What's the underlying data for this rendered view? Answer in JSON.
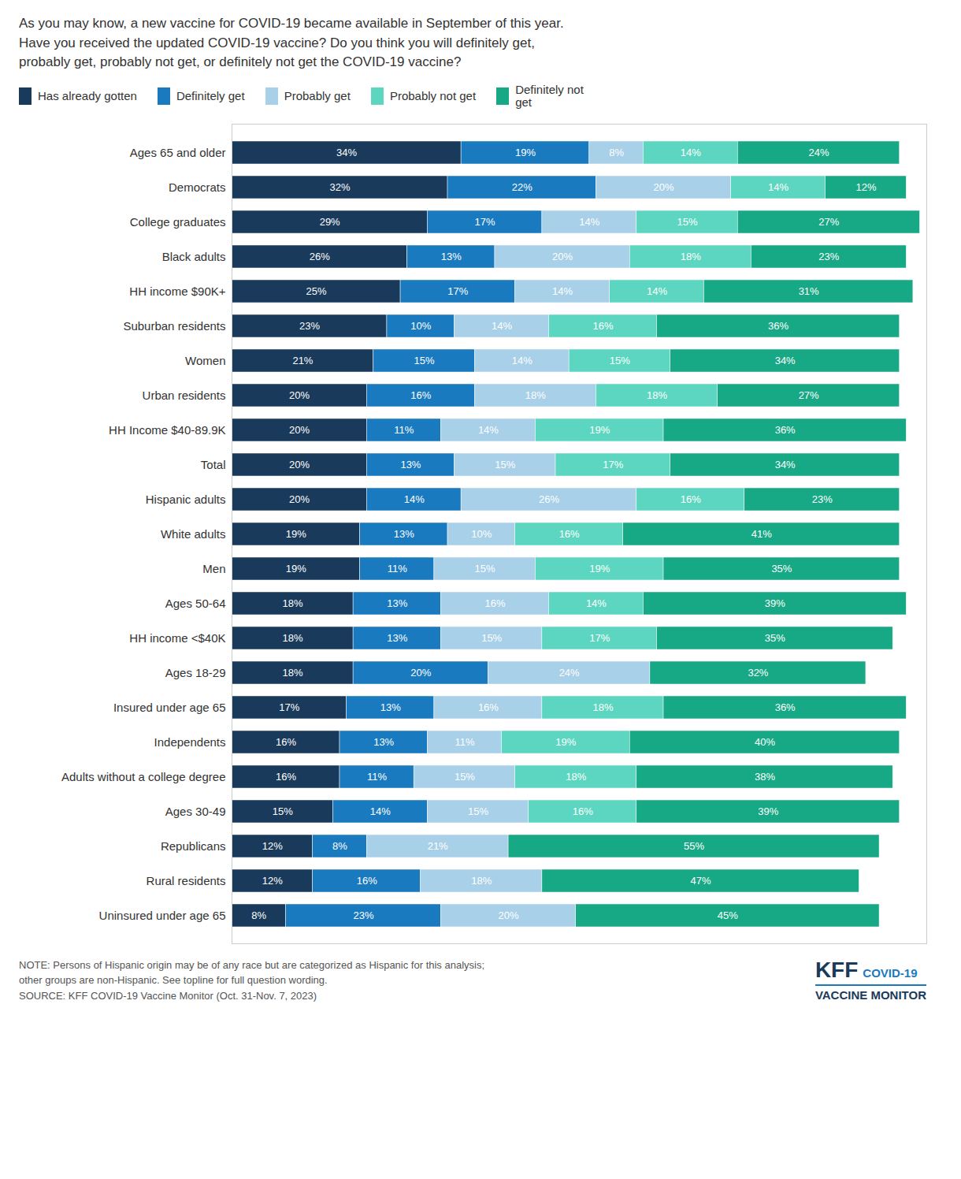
{
  "chart_data": {
    "type": "bar",
    "orientation": "horizontal",
    "stacked": true,
    "data_labels": true,
    "tick_labels": "y",
    "grid": false,
    "legend": "top",
    "title": "As you may know, a new vaccine for COVID-19 became available in September of this year.\nHave you received the updated COVID-19 vaccine? Do you think you will definitely get,\nprobably get, probably not get, or definitely not get the COVID-19 vaccine?",
    "caption": "NOTE: Persons of Hispanic origin may be of any race but are categorized as Hispanic for this analysis;\nother groups are non-Hispanic. See topline for full question wording.\nSOURCE: KFF COVID-19 Vaccine Monitor (Oct. 31-Nov. 7, 2023)",
    "annotations": [
      "KFF",
      "COVID-19",
      "VACCINE MONITOR"
    ],
    "categories": [
      "Ages 65 and older",
      "Democrats",
      "College graduates",
      "Black adults",
      "HH income $90K+",
      "Suburban residents",
      "Women",
      "Urban residents",
      "HH Income $40-89.9K",
      "Total",
      "Hispanic adults",
      "White adults",
      "Men",
      "Ages 50-64",
      "HH income <$40K",
      "Ages 18-29",
      "Insured under age 65",
      "Independents",
      "Adults without a college degree",
      "Ages 30-49",
      "Republicans",
      "Rural residents",
      "Uninsured under age 65"
    ],
    "xlim": [
      0,
      103
    ],
    "xticks": [],
    "series": [
      {
        "name": "Has already gotten",
        "color": "#1a3a5c",
        "values": [
          34,
          32,
          29,
          26,
          25,
          23,
          21,
          20,
          20,
          20,
          20,
          19,
          19,
          18,
          18,
          18,
          17,
          16,
          16,
          15,
          12,
          12,
          8
        ],
        "value_labels": [
          "34%",
          "32%",
          "29%",
          "26%",
          "25%",
          "23%",
          "21%",
          "20%",
          "20%",
          "20%",
          "20%",
          "19%",
          "19%",
          "18%",
          "18%",
          "18%",
          "17%",
          "16%",
          "16%",
          "15%",
          "12%",
          "12%",
          "8%"
        ]
      },
      {
        "name": "Definitely get",
        "color": "#1a7abf",
        "values": [
          19,
          22,
          17,
          13,
          17,
          10,
          15,
          16,
          11,
          13,
          14,
          13,
          11,
          13,
          13,
          20,
          13,
          13,
          11,
          14,
          8,
          16,
          23
        ],
        "value_labels": [
          "19%",
          "22%",
          "17%",
          "13%",
          "17%",
          "10%",
          "15%",
          "16%",
          "11%",
          "13%",
          "14%",
          "13%",
          "11%",
          "13%",
          "13%",
          "20%",
          "13%",
          "13%",
          "11%",
          "14%",
          "8%",
          "16%",
          "23%"
        ]
      },
      {
        "name": "Probably get",
        "color": "#a8d0e8",
        "values": [
          8,
          20,
          14,
          20,
          14,
          14,
          14,
          18,
          14,
          15,
          26,
          10,
          15,
          16,
          15,
          24,
          16,
          11,
          15,
          15,
          21,
          18,
          20
        ],
        "value_labels": [
          "8%",
          "20%",
          "14%",
          "20%",
          "14%",
          "14%",
          "14%",
          "18%",
          "14%",
          "15%",
          "26%",
          "10%",
          "15%",
          "16%",
          "15%",
          "24%",
          "16%",
          "11%",
          "15%",
          "15%",
          "21%",
          "18%",
          "20%"
        ]
      },
      {
        "name": "Probably not get",
        "color": "#5cd6c0",
        "values": [
          14,
          14,
          15,
          18,
          14,
          16,
          15,
          18,
          19,
          17,
          16,
          16,
          19,
          14,
          17,
          0,
          18,
          19,
          18,
          16,
          0,
          0,
          0
        ],
        "value_labels": [
          "14%",
          "14%",
          "15%",
          "18%",
          "14%",
          "16%",
          "15%",
          "18%",
          "19%",
          "17%",
          "16%",
          "16%",
          "19%",
          "14%",
          "17%",
          null,
          "18%",
          "19%",
          "18%",
          "16%",
          null,
          null,
          null
        ]
      },
      {
        "name": "Definitely not\nget",
        "color": "#17a885",
        "values": [
          24,
          12,
          27,
          23,
          31,
          36,
          34,
          27,
          36,
          34,
          23,
          41,
          35,
          39,
          35,
          32,
          36,
          40,
          38,
          39,
          55,
          47,
          45
        ],
        "value_labels": [
          "24%",
          "12%",
          "27%",
          "23%",
          "31%",
          "36%",
          "34%",
          "27%",
          "36%",
          "34%",
          "23%",
          "41%",
          "35%",
          "39%",
          "35%",
          "32%",
          "36%",
          "40%",
          "38%",
          "39%",
          "55%",
          "47%",
          "45%"
        ]
      }
    ]
  }
}
